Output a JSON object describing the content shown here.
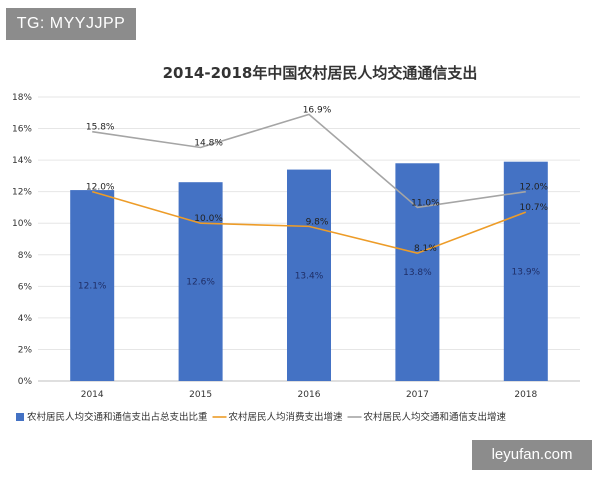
{
  "watermarks": {
    "top_left": "TG: MYYJJPP",
    "bottom_right": "leyufan.com"
  },
  "chart_data": {
    "type": "bar",
    "title": "2014-2018年中国农村居民人均交通通信支出",
    "categories": [
      "2014",
      "2015",
      "2016",
      "2017",
      "2018"
    ],
    "ylim": [
      0,
      18
    ],
    "yticks": [
      "0%",
      "2%",
      "4%",
      "6%",
      "8%",
      "10%",
      "12%",
      "14%",
      "16%",
      "18%"
    ],
    "grid": true,
    "legend_position": "bottom",
    "series": [
      {
        "name": "农村居民人均交通和通信支出占总支出比重",
        "type": "bar",
        "color": "#4472C4",
        "values": [
          12.1,
          12.6,
          13.4,
          13.8,
          13.9
        ],
        "labels": [
          "12.1%",
          "12.6%",
          "13.4%",
          "13.8%",
          "13.9%"
        ]
      },
      {
        "name": "农村居民人均消费支出增速",
        "type": "line",
        "color": "#ED9C28",
        "values": [
          12.0,
          10.0,
          9.8,
          8.1,
          10.7
        ],
        "labels": [
          "12.0%",
          "10.0%",
          "9.8%",
          "8.1%",
          "10.7%"
        ]
      },
      {
        "name": "农村居民人均交通和通信支出增速",
        "type": "line",
        "color": "#A5A5A5",
        "values": [
          15.8,
          14.8,
          16.9,
          11.0,
          12.0
        ],
        "labels": [
          "15.8%",
          "14.8%",
          "16.9%",
          "11.0%",
          "12.0%"
        ]
      }
    ]
  }
}
